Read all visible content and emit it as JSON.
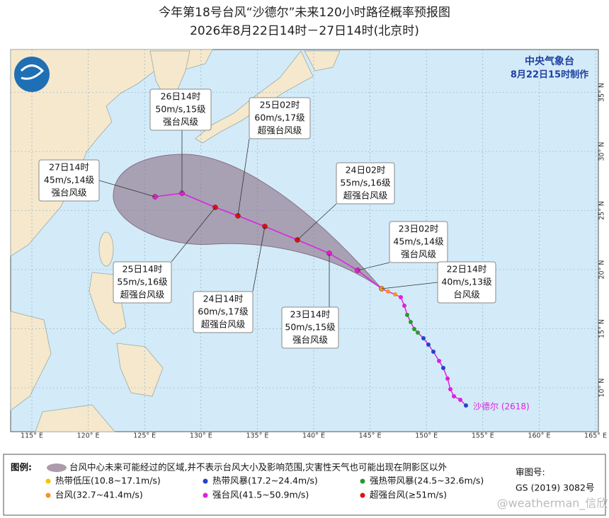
{
  "header": {
    "title": "今年第18号台风“沙德尔”未来120小时路径概率预报图",
    "subtitle": "2026年8月22日14时－27日14时(北京时)"
  },
  "agency": {
    "name": "中央气象台",
    "issued": "8月22日15时制作"
  },
  "typhoon_name": "沙德尔 (2618)",
  "forecast_labels": [
    {
      "time": "26日14时",
      "wind": "50m/s,15级",
      "level": "强台风级"
    },
    {
      "time": "25日02时",
      "wind": "60m/s,17级",
      "level": "超强台风级"
    },
    {
      "time": "27日14时",
      "wind": "45m/s,14级",
      "level": "强台风级"
    },
    {
      "time": "24日02时",
      "wind": "55m/s,16级",
      "level": "超强台风级"
    },
    {
      "time": "23日02时",
      "wind": "45m/s,14级",
      "level": "强台风级"
    },
    {
      "time": "22日14时",
      "wind": "40m/s,13级",
      "level": "台风级"
    },
    {
      "time": "25日14时",
      "wind": "55m/s,16级",
      "level": "超强台风级"
    },
    {
      "time": "24日14时",
      "wind": "60m/s,17级",
      "level": "超强台风级"
    },
    {
      "time": "23日14时",
      "wind": "50m/s,15级",
      "level": "强台风级"
    }
  ],
  "lon_labels": [
    "115° E",
    "120° E",
    "125° E",
    "130° E",
    "135° E",
    "140° E",
    "145° E",
    "150° E",
    "155° E",
    "160° E",
    "165° E"
  ],
  "lat_labels": [
    "10° N",
    "15° N",
    "20° N",
    "25° N",
    "30° N",
    "35° N"
  ],
  "legend": {
    "title": "图例:",
    "cone": "台风中心未来可能经过的区域,并不表示台风大小及影响范围,灾害性天气也可能出现在阴影区以外",
    "items": [
      {
        "label": "热带低压(10.8~17.1m/s)",
        "color": "#f2c500"
      },
      {
        "label": "热带风暴(17.2~24.4m/s)",
        "color": "#2244cc"
      },
      {
        "label": "强热带风暴(24.5~32.6m/s)",
        "color": "#2a9a2a"
      },
      {
        "label": "台风(32.7~41.4m/s)",
        "color": "#f7931e"
      },
      {
        "label": "强台风(41.5~50.9m/s)",
        "color": "#e020e0"
      },
      {
        "label": "超强台风(≥51m/s)",
        "color": "#e01010"
      }
    ],
    "review_label": "审图号:",
    "review_number": "GS (2019) 3082号"
  },
  "watermark": "@weatherman_信欣"
}
